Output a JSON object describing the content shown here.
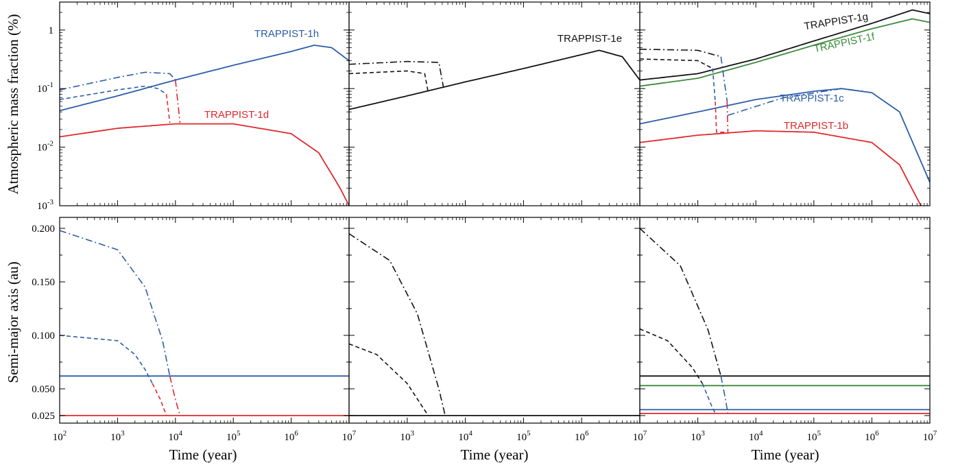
{
  "colors": {
    "blue": "#2b5ca8",
    "red": "#e0272b",
    "black": "#111111",
    "green": "#3a8a3a"
  },
  "labels": {
    "ylabel_top": "Atmospheric mass fraction (%)",
    "ylabel_bottom": "Semi-major axis (au)",
    "xlabel": "Time (year)"
  },
  "x_ticks": [
    "10",
    "10",
    "10",
    "10",
    "10",
    "10"
  ],
  "x_tick_exponents": [
    "2",
    "3",
    "4",
    "5",
    "6",
    "7"
  ],
  "y_ticks_top": [
    {
      "base": "1",
      "exp": "",
      "value": 1
    },
    {
      "base": "10",
      "exp": "-1",
      "value": 0.1
    },
    {
      "base": "10",
      "exp": "-2",
      "value": 0.01
    },
    {
      "base": "10",
      "exp": "-3",
      "value": 0.001
    }
  ],
  "y_ticks_bottom": [
    "0.200",
    "0.150",
    "0.100",
    "0.050",
    "0.025"
  ],
  "chart_data": [
    {
      "type": "line",
      "panel": "top-left",
      "xscale": "log",
      "yscale": "log",
      "xlim": [
        100,
        10000000
      ],
      "ylim": [
        0.001,
        3
      ],
      "labels": [
        {
          "text": "TRAPPIST-1h",
          "color": "blue"
        },
        {
          "text": "TRAPPIST-1d",
          "color": "red"
        }
      ],
      "series": [
        {
          "color": "blue",
          "style": "solid",
          "x": [
            100,
            1000,
            10000,
            100000,
            1000000,
            2500000,
            5000000,
            10000000
          ],
          "y": [
            0.042,
            0.075,
            0.14,
            0.25,
            0.43,
            0.55,
            0.5,
            0.3
          ]
        },
        {
          "color": "blue",
          "style": "dashed",
          "x": [
            100,
            1000,
            3000,
            5000,
            7000
          ],
          "y": [
            0.065,
            0.095,
            0.11,
            0.1,
            0.08
          ]
        },
        {
          "color": "red",
          "style": "dashed",
          "x": [
            7000,
            8000
          ],
          "y": [
            0.08,
            0.026
          ]
        },
        {
          "color": "blue",
          "style": "dashdot",
          "x": [
            100,
            1000,
            3000,
            8000,
            10000
          ],
          "y": [
            0.095,
            0.155,
            0.19,
            0.18,
            0.14
          ]
        },
        {
          "color": "red",
          "style": "dashdot",
          "x": [
            10000,
            12000
          ],
          "y": [
            0.14,
            0.026
          ]
        },
        {
          "color": "red",
          "style": "solid",
          "x": [
            100,
            1000,
            10000,
            100000,
            1000000,
            3000000,
            7000000,
            10000000
          ],
          "y": [
            0.015,
            0.021,
            0.025,
            0.025,
            0.017,
            0.008,
            0.002,
            0.001
          ]
        }
      ]
    },
    {
      "type": "line",
      "panel": "top-middle",
      "xscale": "log",
      "yscale": "log",
      "xlim": [
        100,
        10000000
      ],
      "ylim": [
        0.001,
        3
      ],
      "labels": [
        {
          "text": "TRAPPIST-1e",
          "color": "black"
        }
      ],
      "series": [
        {
          "color": "black",
          "style": "solid",
          "x": [
            100,
            1000,
            10000,
            100000,
            1000000,
            2000000,
            5000000,
            10000000
          ],
          "y": [
            0.044,
            0.075,
            0.13,
            0.22,
            0.38,
            0.45,
            0.35,
            0.14
          ]
        },
        {
          "color": "black",
          "style": "dashed",
          "x": [
            100,
            1000,
            2000,
            2300
          ],
          "y": [
            0.18,
            0.2,
            0.18,
            0.085
          ]
        },
        {
          "color": "black",
          "style": "dashdot",
          "x": [
            100,
            1000,
            3500,
            4200
          ],
          "y": [
            0.26,
            0.29,
            0.28,
            0.105
          ]
        }
      ]
    },
    {
      "type": "line",
      "panel": "top-right",
      "xscale": "log",
      "yscale": "log",
      "xlim": [
        100,
        10000000
      ],
      "ylim": [
        0.001,
        3
      ],
      "labels": [
        {
          "text": "TRAPPIST-1g",
          "color": "black"
        },
        {
          "text": "TRAPPIST-1f",
          "color": "green"
        },
        {
          "text": "TRAPPIST-1c",
          "color": "blue"
        },
        {
          "text": "TRAPPIST-1b",
          "color": "red"
        }
      ],
      "series": [
        {
          "color": "black",
          "style": "solid",
          "x": [
            100,
            1000,
            10000,
            100000,
            1000000,
            5000000,
            10000000
          ],
          "y": [
            0.14,
            0.18,
            0.32,
            0.65,
            1.3,
            2.2,
            1.9
          ]
        },
        {
          "color": "green",
          "style": "solid",
          "x": [
            100,
            1000,
            10000,
            100000,
            1000000,
            5000000,
            10000000
          ],
          "y": [
            0.11,
            0.15,
            0.28,
            0.55,
            1.05,
            1.55,
            1.35
          ]
        },
        {
          "color": "blue",
          "style": "solid",
          "x": [
            100,
            1000,
            10000,
            100000,
            300000,
            1000000,
            3000000,
            10000000
          ],
          "y": [
            0.025,
            0.04,
            0.065,
            0.09,
            0.1,
            0.085,
            0.04,
            0.0025
          ]
        },
        {
          "color": "red",
          "style": "solid",
          "x": [
            100,
            1000,
            10000,
            100000,
            1000000,
            3000000,
            7000000
          ],
          "y": [
            0.012,
            0.016,
            0.019,
            0.018,
            0.012,
            0.005,
            0.001
          ]
        },
        {
          "color": "black",
          "style": "dashed",
          "x": [
            100,
            1000,
            1800
          ],
          "y": [
            0.32,
            0.3,
            0.22
          ]
        },
        {
          "color": "blue",
          "style": "dashed",
          "x": [
            1800,
            2000
          ],
          "y": [
            0.22,
            0.06
          ]
        },
        {
          "color": "red",
          "style": "dashed",
          "x": [
            2000,
            2100,
            3000
          ],
          "y": [
            0.06,
            0.018,
            0.018
          ]
        },
        {
          "color": "black",
          "style": "dashdot",
          "x": [
            100,
            1000,
            2500
          ],
          "y": [
            0.47,
            0.45,
            0.35
          ]
        },
        {
          "color": "blue",
          "style": "dashdot",
          "x": [
            2500,
            3200
          ],
          "y": [
            0.35,
            0.06
          ]
        },
        {
          "color": "red",
          "style": "dashdot",
          "x": [
            3200,
            3300
          ],
          "y": [
            0.06,
            0.018
          ]
        },
        {
          "color": "blue",
          "style": "dashdot",
          "x": [
            3300,
            30000,
            300000,
            700000
          ],
          "y": [
            0.035,
            0.07,
            0.1,
            0.09
          ]
        }
      ]
    },
    {
      "type": "line",
      "panel": "bottom-left",
      "xscale": "log",
      "xlim": [
        100,
        10000000
      ],
      "ylim": [
        0.02,
        0.205
      ],
      "series": [
        {
          "color": "blue",
          "style": "solid",
          "x": [
            100,
            10000000
          ],
          "y": [
            0.062,
            0.062
          ]
        },
        {
          "color": "red",
          "style": "solid",
          "x": [
            100,
            10000000
          ],
          "y": [
            0.025,
            0.025
          ]
        },
        {
          "color": "blue",
          "style": "dashed",
          "x": [
            100,
            1000,
            2000,
            3000,
            4000
          ],
          "y": [
            0.1,
            0.095,
            0.082,
            0.068,
            0.055
          ]
        },
        {
          "color": "red",
          "style": "dashed",
          "x": [
            4000,
            5500,
            7000
          ],
          "y": [
            0.055,
            0.04,
            0.025
          ]
        },
        {
          "color": "blue",
          "style": "dashdot",
          "x": [
            100,
            1000,
            3000,
            6000,
            8000
          ],
          "y": [
            0.198,
            0.18,
            0.145,
            0.095,
            0.062
          ]
        },
        {
          "color": "red",
          "style": "dashdot",
          "x": [
            8000,
            10000,
            12000
          ],
          "y": [
            0.062,
            0.04,
            0.025
          ]
        }
      ]
    },
    {
      "type": "line",
      "panel": "bottom-middle",
      "xscale": "log",
      "xlim": [
        100,
        10000000
      ],
      "ylim": [
        0.02,
        0.205
      ],
      "series": [
        {
          "color": "black",
          "style": "solid",
          "x": [
            100,
            10000000
          ],
          "y": [
            0.025,
            0.025
          ]
        },
        {
          "color": "black",
          "style": "dashed",
          "x": [
            100,
            300,
            1000,
            2000,
            2300
          ],
          "y": [
            0.092,
            0.082,
            0.055,
            0.03,
            0.025
          ]
        },
        {
          "color": "black",
          "style": "dashdot",
          "x": [
            100,
            500,
            1500,
            3500,
            4500
          ],
          "y": [
            0.195,
            0.17,
            0.12,
            0.05,
            0.025
          ]
        }
      ]
    },
    {
      "type": "line",
      "panel": "bottom-right",
      "xscale": "log",
      "xlim": [
        100,
        10000000
      ],
      "ylim": [
        0.02,
        0.205
      ],
      "series": [
        {
          "color": "black",
          "style": "solid",
          "x": [
            100,
            10000000
          ],
          "y": [
            0.062,
            0.062
          ]
        },
        {
          "color": "green",
          "style": "solid",
          "x": [
            100,
            10000000
          ],
          "y": [
            0.053,
            0.053
          ]
        },
        {
          "color": "blue",
          "style": "solid",
          "x": [
            100,
            10000000
          ],
          "y": [
            0.0305,
            0.0305
          ]
        },
        {
          "color": "red",
          "style": "solid",
          "x": [
            100,
            10000000
          ],
          "y": [
            0.027,
            0.027
          ]
        },
        {
          "color": "black",
          "style": "dashed",
          "x": [
            100,
            300,
            800,
            1200
          ],
          "y": [
            0.106,
            0.095,
            0.07,
            0.055
          ]
        },
        {
          "color": "blue",
          "style": "dashed",
          "x": [
            1200,
            1700,
            2000
          ],
          "y": [
            0.055,
            0.035,
            0.027
          ]
        },
        {
          "color": "black",
          "style": "dashdot",
          "x": [
            100,
            500,
            1500,
            2500
          ],
          "y": [
            0.2,
            0.165,
            0.105,
            0.062
          ]
        },
        {
          "color": "blue",
          "style": "dashdot",
          "x": [
            2500,
            3000,
            3300
          ],
          "y": [
            0.062,
            0.04,
            0.027
          ]
        }
      ]
    }
  ]
}
